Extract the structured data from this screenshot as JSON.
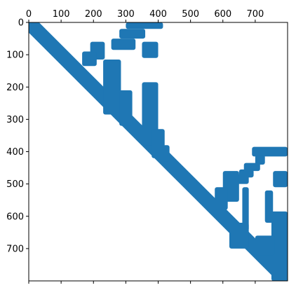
{
  "chart_data": {
    "type": "heatmap",
    "title": "",
    "xlabel": "",
    "ylabel": "",
    "xlim": [
      0,
      800
    ],
    "ylim": [
      800,
      0
    ],
    "x_ticks": [
      "0",
      "100",
      "200",
      "300",
      "400",
      "500",
      "600",
      "700"
    ],
    "y_ticks": [
      "0",
      "100",
      "200",
      "300",
      "400",
      "500",
      "600",
      "700"
    ],
    "x_axis_position": "top",
    "grid": false,
    "legend": "none",
    "colors": {
      "mark": "#1f77b4",
      "axis": "#000000",
      "background": "#ffffff"
    },
    "diagonal_band": {
      "start": [
        0,
        0
      ],
      "end": [
        800,
        800
      ],
      "width": 45
    },
    "regions": [
      {
        "x": [
          300,
          415
        ],
        "y": [
          0,
          20
        ]
      },
      {
        "x": [
          280,
          360
        ],
        "y": [
          20,
          50
        ]
      },
      {
        "x": [
          255,
          330
        ],
        "y": [
          50,
          85
        ]
      },
      {
        "x": [
          350,
          400
        ],
        "y": [
          60,
          110
        ]
      },
      {
        "x": [
          190,
          235
        ],
        "y": [
          60,
          115
        ]
      },
      {
        "x": [
          165,
          210
        ],
        "y": [
          90,
          135
        ]
      },
      {
        "x": [
          230,
          285
        ],
        "y": [
          115,
          285
        ]
      },
      {
        "x": [
          280,
          320
        ],
        "y": [
          210,
          320
        ]
      },
      {
        "x": [
          350,
          400
        ],
        "y": [
          185,
          380
        ]
      },
      {
        "x": [
          380,
          420
        ],
        "y": [
          330,
          420
        ]
      },
      {
        "x": [
          415,
          435
        ],
        "y": [
          380,
          430
        ]
      },
      {
        "x": [
          690,
          800
        ],
        "y": [
          385,
          415
        ]
      },
      {
        "x": [
          700,
          730
        ],
        "y": [
          410,
          440
        ]
      },
      {
        "x": [
          665,
          715
        ],
        "y": [
          435,
          460
        ]
      },
      {
        "x": [
          650,
          695
        ],
        "y": [
          455,
          480
        ]
      },
      {
        "x": [
          635,
          680
        ],
        "y": [
          470,
          500
        ]
      },
      {
        "x": [
          755,
          800
        ],
        "y": [
          460,
          510
        ]
      },
      {
        "x": [
          600,
          650
        ],
        "y": [
          460,
          555
        ]
      },
      {
        "x": [
          575,
          615
        ],
        "y": [
          510,
          580
        ]
      },
      {
        "x": [
          660,
          680
        ],
        "y": [
          510,
          645
        ]
      },
      {
        "x": [
          730,
          755
        ],
        "y": [
          520,
          620
        ]
      },
      {
        "x": [
          750,
          800
        ],
        "y": [
          585,
          800
        ]
      },
      {
        "x": [
          700,
          760
        ],
        "y": [
          660,
          720
        ]
      },
      {
        "x": [
          620,
          680
        ],
        "y": [
          620,
          700
        ]
      }
    ]
  }
}
